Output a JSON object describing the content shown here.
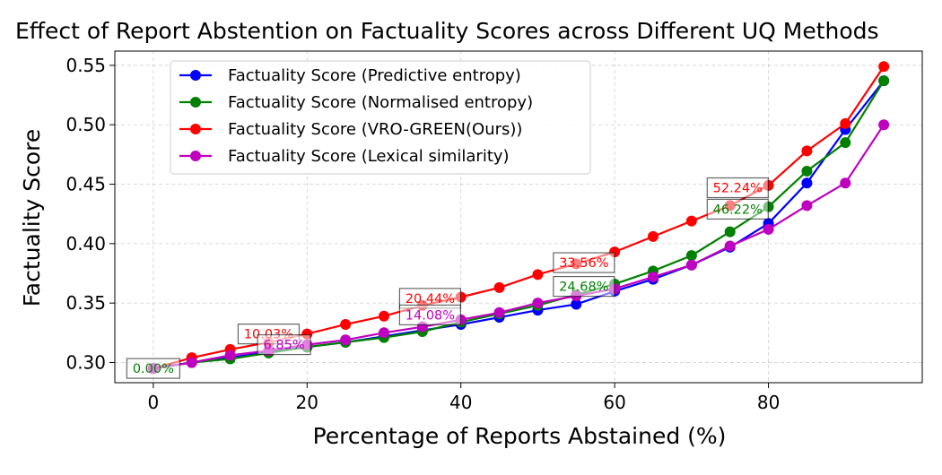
{
  "chart_data": {
    "type": "line",
    "title": "Effect of Report Abstention on Factuality Scores across Different UQ Methods",
    "xlabel": "Percentage of Reports Abstained (%)",
    "ylabel": "Factuality Score",
    "xlim": [
      -5,
      100
    ],
    "ylim": [
      0.283,
      0.562
    ],
    "x_ticks": [
      0,
      20,
      40,
      60,
      80
    ],
    "y_ticks": [
      0.3,
      0.35,
      0.4,
      0.45,
      0.5,
      0.55
    ],
    "x_tick_labels": [
      "0",
      "20",
      "40",
      "60",
      "80"
    ],
    "y_tick_labels": [
      "0.30",
      "0.35",
      "0.40",
      "0.45",
      "0.50",
      "0.55"
    ],
    "grid": true,
    "legend_position": "top-left",
    "x": [
      0,
      5,
      10,
      15,
      20,
      25,
      30,
      35,
      40,
      45,
      50,
      55,
      60,
      65,
      70,
      75,
      80,
      85,
      90,
      95
    ],
    "series": [
      {
        "name": "Factuality Score (Predictive entropy)",
        "color": "#0000ff",
        "values": [
          0.295,
          0.3,
          0.304,
          0.309,
          0.313,
          0.317,
          0.322,
          0.327,
          0.332,
          0.338,
          0.344,
          0.349,
          0.36,
          0.37,
          0.382,
          0.397,
          0.417,
          0.451,
          0.496,
          0.537
        ]
      },
      {
        "name": "Factuality Score (Normalised entropy)",
        "color": "#008000",
        "values": [
          0.295,
          0.3,
          0.303,
          0.308,
          0.313,
          0.317,
          0.321,
          0.326,
          0.334,
          0.341,
          0.348,
          0.357,
          0.366,
          0.377,
          0.39,
          0.41,
          0.431,
          0.461,
          0.485,
          0.537
        ]
      },
      {
        "name": "Factuality Score (VRO-GREEN(Ours))",
        "color": "#ff0000",
        "values": [
          0.295,
          0.304,
          0.311,
          0.317,
          0.324,
          0.332,
          0.339,
          0.348,
          0.355,
          0.363,
          0.374,
          0.383,
          0.393,
          0.406,
          0.419,
          0.432,
          0.449,
          0.478,
          0.501,
          0.549
        ]
      },
      {
        "name": "Factuality Score (Lexical similarity)",
        "color": "#bf00bf",
        "values": [
          0.295,
          0.3,
          0.306,
          0.31,
          0.315,
          0.319,
          0.325,
          0.33,
          0.336,
          0.342,
          0.35,
          0.356,
          0.362,
          0.372,
          0.382,
          0.398,
          0.412,
          0.432,
          0.451,
          0.5
        ]
      }
    ],
    "annotations": [
      {
        "text": "0.00%",
        "x": 0,
        "y": 0.295,
        "color": "#008000"
      },
      {
        "text": "10.03%",
        "x": 15,
        "y": 0.324,
        "color": "#ff0000"
      },
      {
        "text": "6.85%",
        "x": 17,
        "y": 0.315,
        "color": "#bf00bf"
      },
      {
        "text": "20.44%",
        "x": 36,
        "y": 0.354,
        "color": "#ff0000"
      },
      {
        "text": "14.08%",
        "x": 36,
        "y": 0.34,
        "color": "#bf00bf"
      },
      {
        "text": "33.56%",
        "x": 56,
        "y": 0.384,
        "color": "#ff0000"
      },
      {
        "text": "24.68%",
        "x": 56,
        "y": 0.364,
        "color": "#008000"
      },
      {
        "text": "52.24%",
        "x": 76,
        "y": 0.447,
        "color": "#ff0000"
      },
      {
        "text": "46.22%",
        "x": 76,
        "y": 0.429,
        "color": "#008000"
      }
    ]
  }
}
